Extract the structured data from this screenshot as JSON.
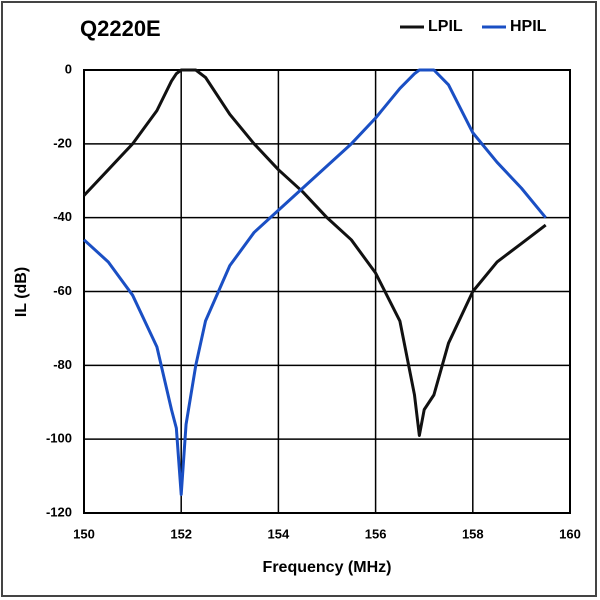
{
  "chart_data": {
    "type": "line",
    "title": "Q2220E",
    "x_label": "Frequency (MHz)",
    "y_label": "IL (dB)",
    "x": [
      150,
      150.5,
      151,
      151.5,
      151.8,
      151.9,
      152,
      152.1,
      152.3,
      152.5,
      153,
      153.5,
      154,
      154.5,
      155,
      155.5,
      156,
      156.5,
      156.8,
      156.9,
      157,
      157.2,
      157.5,
      158,
      158.5,
      159,
      159.5
    ],
    "series": [
      {
        "name": "LPIL",
        "color": "#111111",
        "values": [
          -34,
          -27,
          -20,
          -11,
          -3,
          -1,
          0,
          0,
          0,
          -2,
          -12,
          -20,
          -27,
          -33,
          -40,
          -46,
          -55,
          -68,
          -88,
          -99,
          -92,
          -88,
          -74,
          -60,
          -52,
          -47,
          -42
        ]
      },
      {
        "name": "HPIL",
        "color": "#1a4fc4",
        "values": [
          -46,
          -52,
          -61,
          -75,
          -92,
          -97,
          -115,
          -96,
          -80,
          -68,
          -53,
          -44,
          -38,
          -32,
          -26,
          -20,
          -13,
          -5,
          -1,
          0,
          0,
          0,
          -4,
          -17,
          -25,
          -32,
          -40
        ]
      }
    ],
    "xlim": [
      150,
      160
    ],
    "ylim": [
      -120,
      0
    ],
    "xticks": [
      150,
      152,
      154,
      156,
      158,
      160
    ],
    "yticks": [
      0,
      -20,
      -40,
      -60,
      -80,
      -100,
      -120
    ],
    "grid": true,
    "legend": "top-right"
  }
}
